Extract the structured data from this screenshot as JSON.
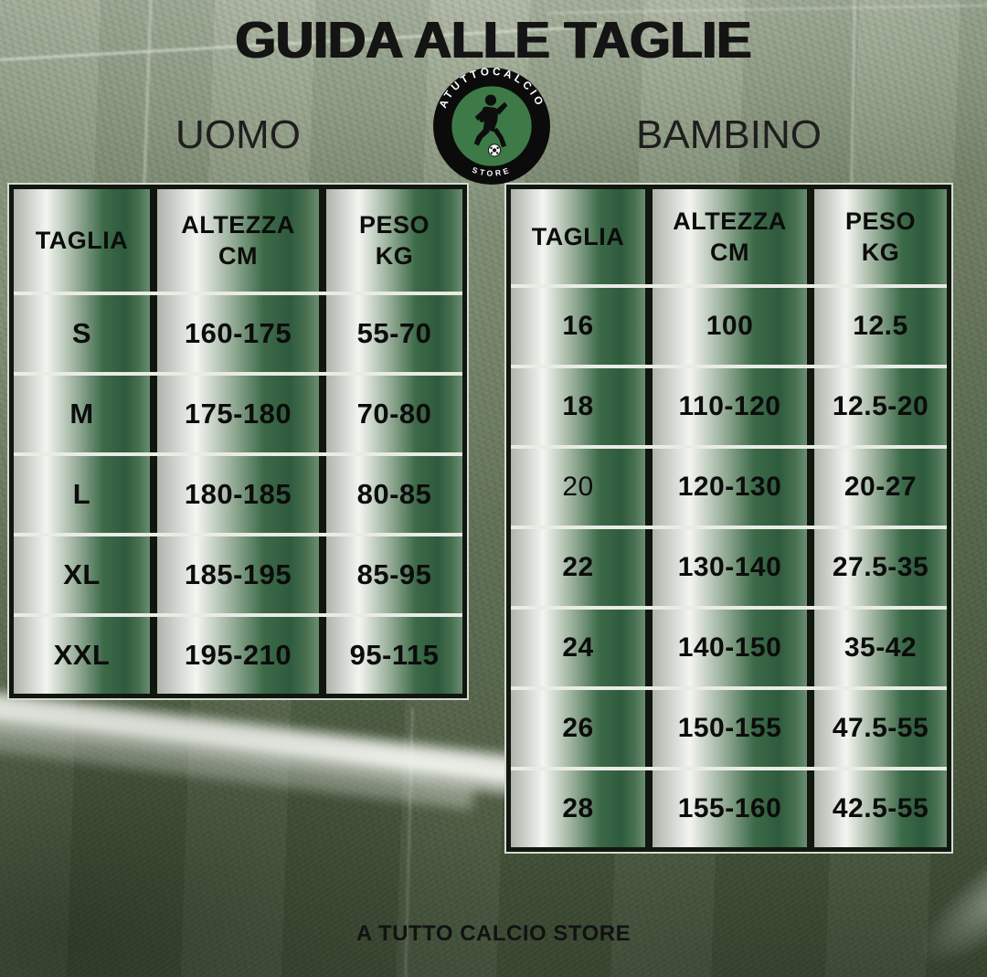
{
  "page": {
    "title": "GUIDA ALLE TAGLIE",
    "footer": "A TUTTO CALCIO STORE"
  },
  "logo": {
    "arc_text": "ATUTTOCALCIO",
    "bottom_text": "STORE",
    "colors": {
      "ring": "#0b0b0b",
      "inner": "#3d7a47",
      "text": "#ffffff"
    }
  },
  "tables": {
    "uomo": {
      "label": "UOMO",
      "headers": [
        {
          "line1": "TAGLIA",
          "line2": ""
        },
        {
          "line1": "ALTEZZA",
          "line2": "CM"
        },
        {
          "line1": "PESO",
          "line2": "KG"
        }
      ],
      "rows": [
        {
          "taglia": "S",
          "altezza": "160-175",
          "peso": "55-70"
        },
        {
          "taglia": "M",
          "altezza": "175-180",
          "peso": "70-80"
        },
        {
          "taglia": "L",
          "altezza": "180-185",
          "peso": "80-85"
        },
        {
          "taglia": "XL",
          "altezza": "185-195",
          "peso": "85-95"
        },
        {
          "taglia": "XXL",
          "altezza": "195-210",
          "peso": "95-115"
        }
      ]
    },
    "bambino": {
      "label": "BAMBINO",
      "headers": [
        {
          "line1": "TAGLIA",
          "line2": ""
        },
        {
          "line1": "ALTEZZA",
          "line2": "CM"
        },
        {
          "line1": "PESO",
          "line2": "KG"
        }
      ],
      "rows": [
        {
          "taglia": "16",
          "altezza": "100",
          "peso": "12.5"
        },
        {
          "taglia": "18",
          "altezza": "110-120",
          "peso": "12.5-20"
        },
        {
          "taglia": "20",
          "altezza": "120-130",
          "peso": "20-27",
          "taglia_light": true
        },
        {
          "taglia": "22",
          "altezza": "130-140",
          "peso": "27.5-35"
        },
        {
          "taglia": "24",
          "altezza": "140-150",
          "peso": "35-42"
        },
        {
          "taglia": "26",
          "altezza": "150-155",
          "peso": "47.5-55"
        },
        {
          "taglia": "28",
          "altezza": "155-160",
          "peso": "42.5-55"
        }
      ]
    }
  },
  "colors": {
    "cell_green": "#2e5b3d",
    "cell_silver": "#f3f5f0",
    "row_separator": "#e9ebe5",
    "table_frame": "#11160f",
    "grass_base": "#5d6e51",
    "text": "#0c0c0c"
  }
}
